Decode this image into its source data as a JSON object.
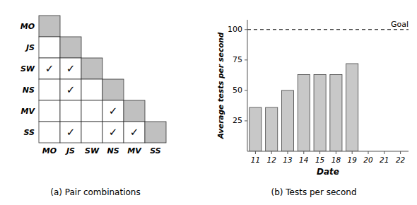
{
  "chart_data": [
    {
      "type": "matrix",
      "title": "(a) Pair combinations",
      "categories": [
        "MO",
        "JS",
        "SW",
        "NS",
        "MV",
        "SS"
      ],
      "checkmarks": [
        [
          2,
          0
        ],
        [
          2,
          1
        ],
        [
          3,
          1
        ],
        [
          4,
          3
        ],
        [
          5,
          1
        ],
        [
          5,
          3
        ],
        [
          5,
          4
        ]
      ],
      "mark_label": "✓"
    },
    {
      "type": "bar",
      "title": "(b) Tests per second",
      "categories": [
        "11",
        "12",
        "13",
        "14",
        "15",
        "18",
        "19",
        "20",
        "21",
        "22"
      ],
      "values": [
        36,
        36,
        50,
        63,
        63,
        63,
        72,
        0,
        0,
        0
      ],
      "color": "#c8c8c8",
      "x_label": "Date",
      "y_label": "Average tests per second",
      "ylim": [
        0,
        108
      ],
      "yticks": [
        25,
        50,
        75,
        100
      ],
      "grid": false,
      "annotations": [
        {
          "type": "hline",
          "value": 100,
          "label": "Goal",
          "line_style": "dashed"
        }
      ]
    }
  ]
}
